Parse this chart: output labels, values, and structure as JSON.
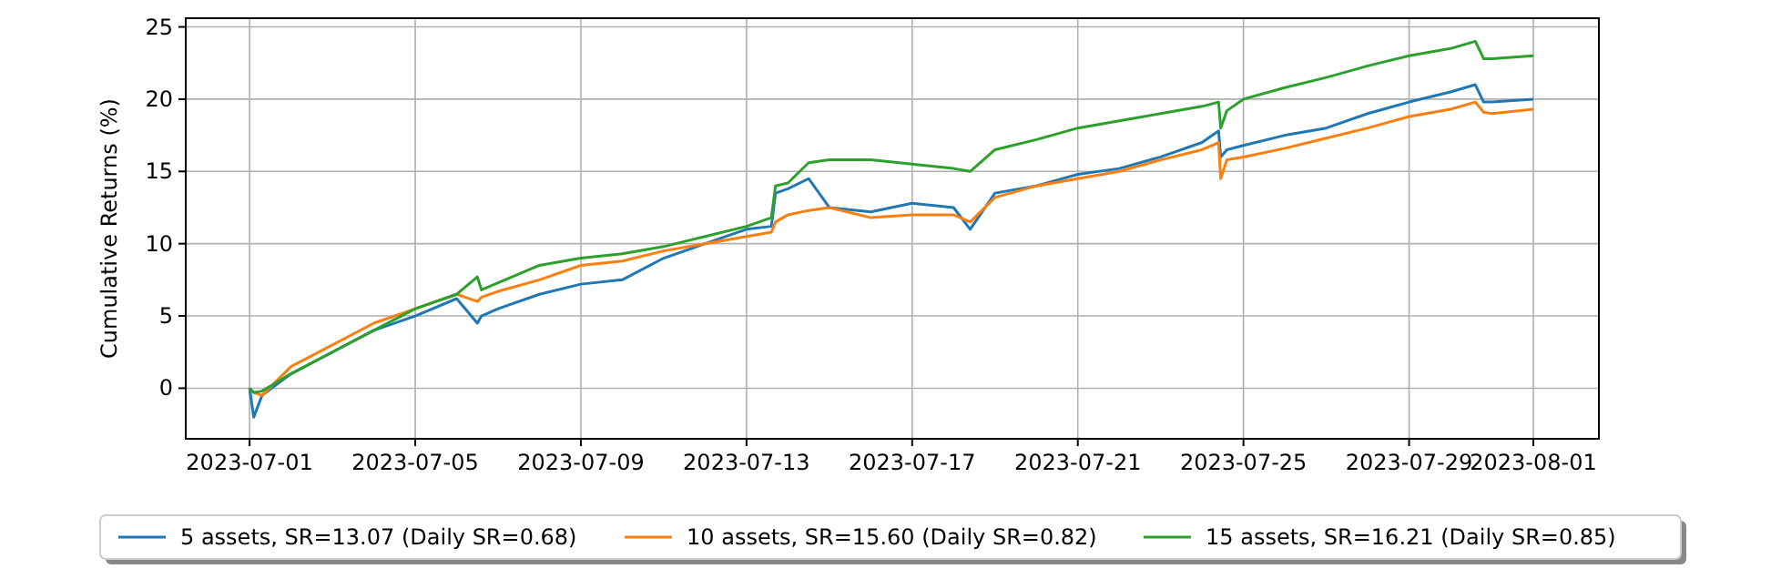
{
  "chart_data": {
    "type": "line",
    "ylabel": "Cumulative Returns (%)",
    "x": [
      "2023-07-01T00:00",
      "2023-07-01T02:24",
      "2023-07-01T07:12",
      "2023-07-02T00:00",
      "2023-07-03T00:00",
      "2023-07-04T00:00",
      "2023-07-05T00:00",
      "2023-07-06T00:00",
      "2023-07-06T12:00",
      "2023-07-06T14:24",
      "2023-07-07T00:00",
      "2023-07-08T00:00",
      "2023-07-09T00:00",
      "2023-07-10T00:00",
      "2023-07-11T00:00",
      "2023-07-12T00:00",
      "2023-07-13T00:00",
      "2023-07-13T14:24",
      "2023-07-13T16:48",
      "2023-07-14T00:00",
      "2023-07-14T12:00",
      "2023-07-15T00:00",
      "2023-07-16T00:00",
      "2023-07-17T00:00",
      "2023-07-18T00:00",
      "2023-07-18T09:36",
      "2023-07-19T00:00",
      "2023-07-20T00:00",
      "2023-07-21T00:00",
      "2023-07-22T00:00",
      "2023-07-23T00:00",
      "2023-07-24T00:00",
      "2023-07-24T09:36",
      "2023-07-24T10:48",
      "2023-07-24T14:24",
      "2023-07-25T00:00",
      "2023-07-26T00:00",
      "2023-07-27T00:00",
      "2023-07-28T00:00",
      "2023-07-29T00:00",
      "2023-07-30T00:00",
      "2023-07-30T14:24",
      "2023-07-30T19:12",
      "2023-07-31T00:00",
      "2023-08-01T00:00"
    ],
    "series": [
      {
        "name": "5 assets, SR=13.07 (Daily SR=0.68)",
        "color": "#1f77b4",
        "values": [
          0,
          -2,
          -0.5,
          1,
          2.5,
          4,
          5,
          6.2,
          4.5,
          5,
          5.5,
          6.5,
          7.2,
          7.5,
          9,
          10,
          11,
          11.2,
          13.5,
          13.8,
          14.5,
          12.5,
          12.2,
          12.8,
          12.5,
          11,
          13.5,
          14,
          14.8,
          15.2,
          16,
          17,
          17.8,
          16,
          16.5,
          16.8,
          17.5,
          18,
          19,
          19.8,
          20.5,
          21,
          19.8,
          19.8,
          20
        ]
      },
      {
        "name": "10 assets, SR=15.60 (Daily SR=0.82)",
        "color": "#ff7f0e",
        "values": [
          0,
          -0.3,
          -0.5,
          1.5,
          3,
          4.5,
          5.5,
          6.5,
          6,
          6.3,
          6.7,
          7.5,
          8.5,
          8.8,
          9.5,
          10,
          10.5,
          10.8,
          11.5,
          12,
          12.3,
          12.5,
          11.8,
          12,
          12,
          11.5,
          13.2,
          14,
          14.5,
          15,
          15.8,
          16.5,
          17,
          14.5,
          15.8,
          16,
          16.6,
          17.3,
          18,
          18.8,
          19.3,
          19.8,
          19.1,
          19,
          19.3
        ]
      },
      {
        "name": "15 assets, SR=16.21 (Daily SR=0.85)",
        "color": "#2ca02c",
        "values": [
          0,
          -0.3,
          -0.2,
          1,
          2.5,
          4,
          5.5,
          6.5,
          7.7,
          6.8,
          7.3,
          8.5,
          9,
          9.3,
          9.8,
          10.5,
          11.2,
          11.8,
          14,
          14.2,
          15.6,
          15.8,
          15.8,
          15.5,
          15.2,
          15,
          16.5,
          17.2,
          18,
          18.5,
          19,
          19.5,
          19.8,
          18,
          19.2,
          20,
          20.8,
          21.5,
          22.3,
          23,
          23.5,
          24,
          22.8,
          22.8,
          23
        ]
      }
    ],
    "xlim": [
      "2023-06-29T11:00",
      "2023-08-02T14:00"
    ],
    "xticks": [
      "2023-07-01",
      "2023-07-05",
      "2023-07-09",
      "2023-07-13",
      "2023-07-17",
      "2023-07-21",
      "2023-07-25",
      "2023-07-29",
      "2023-08-01"
    ],
    "ylim": [
      -3.5,
      25.6
    ],
    "yticks": [
      0,
      5,
      10,
      15,
      20,
      25
    ],
    "grid": true,
    "legend": "bottom",
    "line_style": "solid",
    "marker": "none"
  }
}
